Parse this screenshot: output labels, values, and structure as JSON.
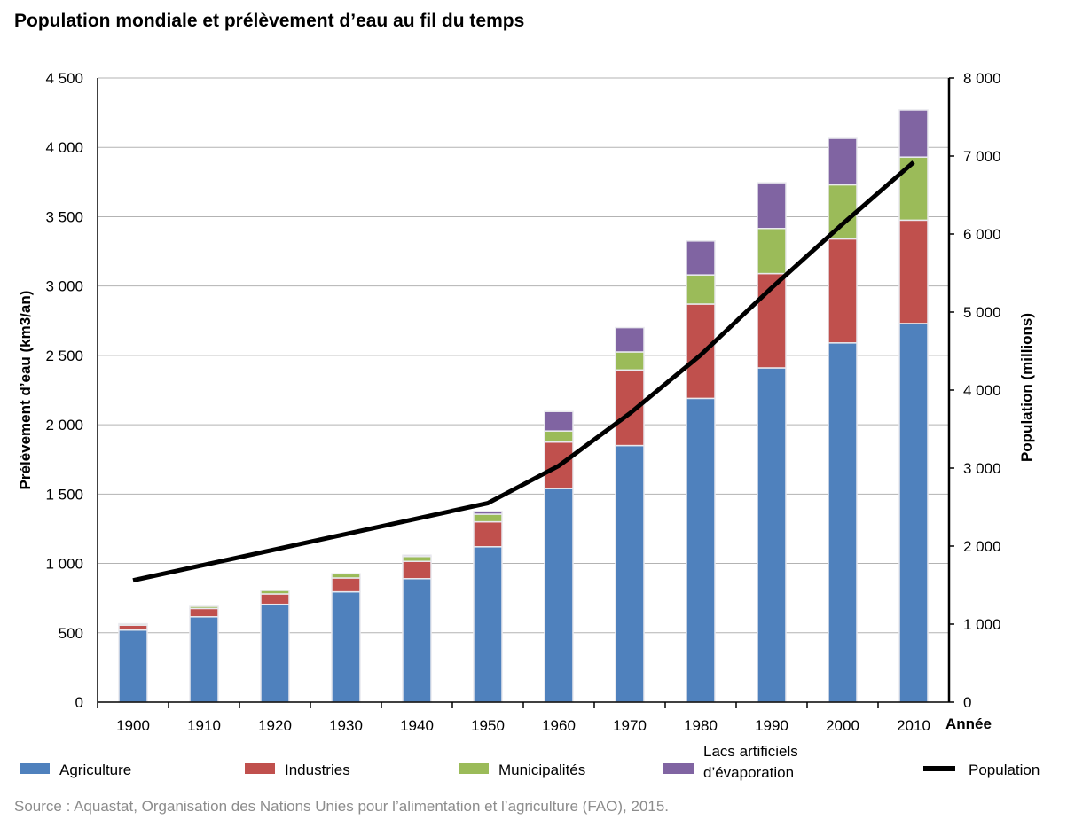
{
  "title": "Population mondiale et prélèvement d’eau au fil du temps",
  "source": "Source : Aquastat, Organisation des Nations Unies pour l’alimentation et l’agriculture (FAO), 2015.",
  "chart_data": {
    "type": "bar",
    "stacked": true,
    "title": "Population mondiale et prélèvement d’eau au fil du temps",
    "xlabel": "Année",
    "ylabel": "Prélèvement d’eau (km3/an)",
    "y2label": "Population (millions)",
    "ylim": [
      0,
      4500
    ],
    "y2lim": [
      0,
      8000
    ],
    "yticks": [
      0,
      500,
      1000,
      1500,
      2000,
      2500,
      3000,
      3500,
      4000,
      4500
    ],
    "ytick_labels": [
      "0",
      "500",
      "1 000",
      "1 500",
      "2 000",
      "2 500",
      "3 000",
      "3 500",
      "4 000",
      "4 500"
    ],
    "y2ticks": [
      0,
      1000,
      2000,
      3000,
      4000,
      5000,
      6000,
      7000,
      8000
    ],
    "y2tick_labels": [
      "0",
      "1 000",
      "2 000",
      "3 000",
      "4 000",
      "5 000",
      "6 000",
      "7 000",
      "8 000"
    ],
    "grid": true,
    "legend_position": "bottom",
    "categories": [
      "1900",
      "1910",
      "1920",
      "1930",
      "1940",
      "1950",
      "1960",
      "1970",
      "1980",
      "1990",
      "2000",
      "2010"
    ],
    "series": [
      {
        "name": "Agriculture",
        "color": "#4f81bd",
        "values": [
          520,
          615,
          705,
          795,
          890,
          1120,
          1540,
          1850,
          2190,
          2410,
          2590,
          2730
        ]
      },
      {
        "name": "Industries",
        "color": "#c0504d",
        "values": [
          35,
          60,
          75,
          100,
          125,
          180,
          335,
          545,
          680,
          680,
          750,
          745
        ]
      },
      {
        "name": "Municipalités",
        "color": "#9bbb59",
        "values": [
          10,
          15,
          25,
          30,
          35,
          55,
          80,
          130,
          210,
          325,
          390,
          455
        ]
      },
      {
        "name": "Lacs artificiels d’évaporation",
        "color": "#8064a2",
        "values": [
          0,
          0,
          0,
          0,
          10,
          20,
          140,
          175,
          245,
          330,
          335,
          340
        ]
      }
    ],
    "line_series": {
      "name": "Population",
      "color": "#000000",
      "axis": "right",
      "x": [
        "1900",
        "1950",
        "1960",
        "1970",
        "1980",
        "1990",
        "2000",
        "2010"
      ],
      "values": [
        1560,
        2550,
        3030,
        3700,
        4450,
        5310,
        6130,
        6920
      ]
    }
  }
}
